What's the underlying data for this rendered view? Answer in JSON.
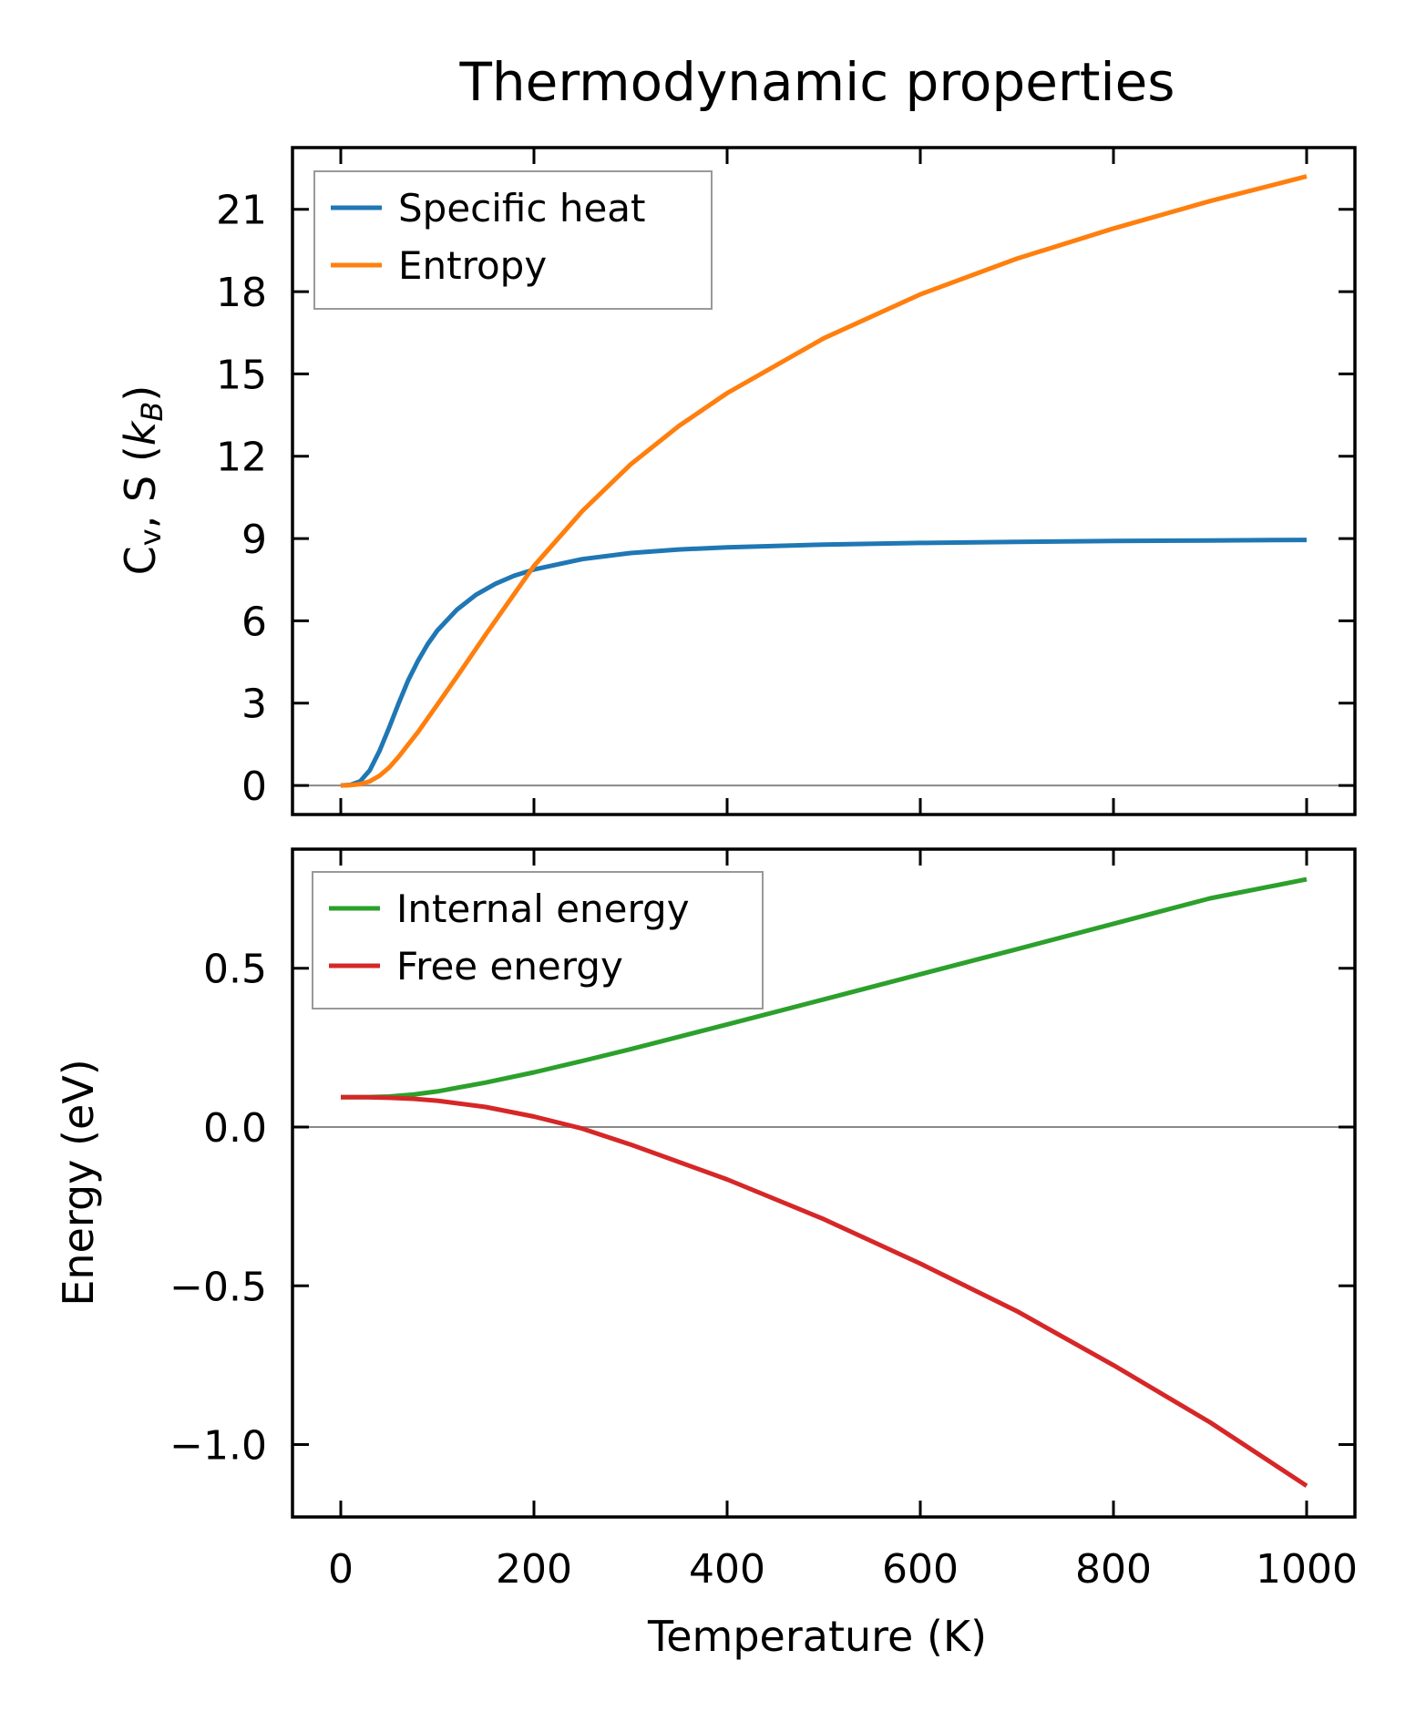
{
  "chart_data": [
    {
      "type": "line",
      "title": "Thermodynamic properties",
      "xlabel": "",
      "ylabel": {
        "c": "C",
        "c_sub": "v",
        "mid": ", S (",
        "k": "k",
        "k_sub": "B",
        "end": ")"
      },
      "xlim": [
        -50,
        1050
      ],
      "ylim": [
        -1.06,
        23.25
      ],
      "xticks": [
        0,
        200,
        400,
        600,
        800,
        1000
      ],
      "yticks": [
        0,
        3,
        6,
        9,
        12,
        15,
        18,
        21
      ],
      "ytick_labels": [
        "0",
        "3",
        "6",
        "9",
        "12",
        "15",
        "18",
        "21"
      ],
      "zero_line": true,
      "legend_position": "upper-left",
      "series": [
        {
          "name": "Specific heat",
          "color": "#1f77b4",
          "x": [
            0,
            10,
            20,
            30,
            40,
            50,
            60,
            70,
            80,
            90,
            100,
            120,
            140,
            160,
            180,
            200,
            250,
            300,
            350,
            400,
            500,
            600,
            700,
            800,
            900,
            1000
          ],
          "y": [
            0,
            0.02,
            0.15,
            0.55,
            1.25,
            2.1,
            3.0,
            3.85,
            4.55,
            5.15,
            5.65,
            6.4,
            6.95,
            7.35,
            7.65,
            7.87,
            8.25,
            8.47,
            8.6,
            8.68,
            8.78,
            8.84,
            8.88,
            8.91,
            8.93,
            8.95
          ]
        },
        {
          "name": "Entropy",
          "color": "#ff7f0e",
          "x": [
            0,
            10,
            20,
            30,
            40,
            50,
            60,
            70,
            80,
            100,
            120,
            150,
            200,
            250,
            300,
            350,
            400,
            500,
            600,
            700,
            800,
            900,
            1000
          ],
          "y": [
            0,
            0.01,
            0.05,
            0.15,
            0.35,
            0.65,
            1.05,
            1.5,
            1.95,
            2.95,
            3.95,
            5.5,
            8.0,
            10.0,
            11.7,
            13.1,
            14.3,
            16.3,
            17.9,
            19.2,
            20.3,
            21.3,
            22.2
          ]
        }
      ]
    },
    {
      "type": "line",
      "title": "",
      "xlabel": "Temperature (K)",
      "ylabel": "Energy (eV)",
      "xlim": [
        -50,
        1050
      ],
      "ylim": [
        -1.228,
        0.875
      ],
      "xticks": [
        0,
        200,
        400,
        600,
        800,
        1000
      ],
      "xtick_labels": [
        "0",
        "200",
        "400",
        "600",
        "800",
        "1000"
      ],
      "yticks": [
        0.5,
        0.0,
        -0.5,
        -1.0
      ],
      "ytick_labels": [
        "0.5",
        "0.0",
        "−0.5",
        "−1.0"
      ],
      "zero_line": true,
      "legend_position": "upper-left",
      "series": [
        {
          "name": "Internal energy",
          "color": "#2ca02c",
          "x": [
            0,
            25,
            50,
            75,
            100,
            150,
            200,
            250,
            300,
            400,
            500,
            600,
            700,
            800,
            900,
            1000
          ],
          "y": [
            0.094,
            0.094,
            0.096,
            0.102,
            0.112,
            0.14,
            0.172,
            0.208,
            0.245,
            0.323,
            0.402,
            0.481,
            0.56,
            0.64,
            0.72,
            0.78
          ]
        },
        {
          "name": "Free energy",
          "color": "#d62728",
          "x": [
            0,
            25,
            50,
            75,
            100,
            150,
            200,
            250,
            300,
            400,
            500,
            600,
            700,
            800,
            900,
            1000
          ],
          "y": [
            0.094,
            0.094,
            0.092,
            0.089,
            0.083,
            0.063,
            0.033,
            -0.005,
            -0.055,
            -0.165,
            -0.29,
            -0.43,
            -0.58,
            -0.75,
            -0.93,
            -1.13
          ]
        }
      ]
    }
  ]
}
